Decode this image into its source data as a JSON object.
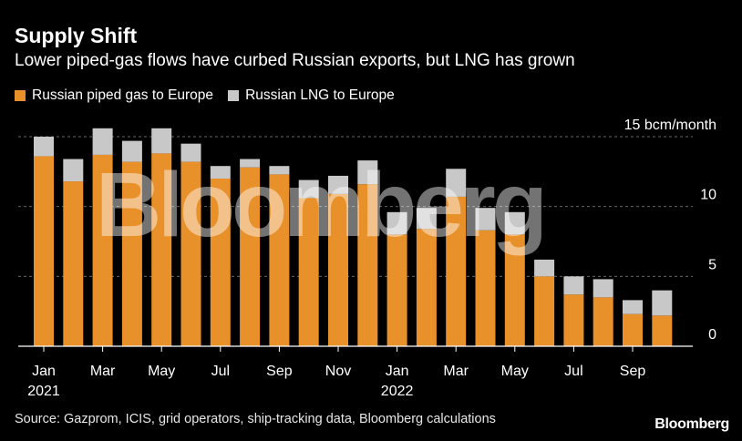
{
  "header": {
    "title": "Supply Shift",
    "subtitle": "Lower piped-gas flows have curbed Russian exports, but LNG has grown"
  },
  "footer": {
    "source": "Source: Gazprom, ICIS, grid operators, ship-tracking data, Bloomberg calculations",
    "brand": "Bloomberg"
  },
  "watermark": "Bloomberg",
  "colors": {
    "piped": "#e8902a",
    "lng": "#c8c8c8",
    "background": "#000000",
    "grid": "#666666"
  },
  "chart_data": {
    "type": "bar",
    "stacked": true,
    "categories": [
      "2021-01",
      "2021-02",
      "2021-03",
      "2021-04",
      "2021-05",
      "2021-06",
      "2021-07",
      "2021-08",
      "2021-09",
      "2021-10",
      "2021-11",
      "2021-12",
      "2022-01",
      "2022-02",
      "2022-03",
      "2022-04",
      "2022-05",
      "2022-06",
      "2022-07",
      "2022-08",
      "2022-09",
      "2022-10"
    ],
    "series": [
      {
        "name": "Russian piped gas to Europe",
        "values": [
          13.6,
          11.8,
          13.7,
          13.2,
          13.8,
          13.2,
          12.0,
          12.8,
          12.3,
          10.6,
          10.9,
          11.6,
          8.0,
          8.4,
          10.7,
          8.3,
          8.0,
          5.0,
          3.7,
          3.5,
          2.3,
          2.2
        ]
      },
      {
        "name": "Russian LNG to Europe",
        "values": [
          1.4,
          1.6,
          1.9,
          1.5,
          1.8,
          1.3,
          0.9,
          0.6,
          0.6,
          1.3,
          1.3,
          1.7,
          1.6,
          1.5,
          2.0,
          1.6,
          1.6,
          1.2,
          1.3,
          1.3,
          1.0,
          1.8
        ]
      }
    ],
    "x_tick_labels": [
      {
        "index": 0,
        "label": "Jan",
        "year": "2021"
      },
      {
        "index": 2,
        "label": "Mar",
        "year": ""
      },
      {
        "index": 4,
        "label": "May",
        "year": ""
      },
      {
        "index": 6,
        "label": "Jul",
        "year": ""
      },
      {
        "index": 8,
        "label": "Sep",
        "year": ""
      },
      {
        "index": 10,
        "label": "Nov",
        "year": ""
      },
      {
        "index": 12,
        "label": "Jan",
        "year": "2022"
      },
      {
        "index": 14,
        "label": "Mar",
        "year": ""
      },
      {
        "index": 16,
        "label": "May",
        "year": ""
      },
      {
        "index": 18,
        "label": "Jul",
        "year": ""
      },
      {
        "index": 20,
        "label": "Sep",
        "year": ""
      }
    ],
    "y_ticks": [
      {
        "value": 0,
        "label": "0"
      },
      {
        "value": 5,
        "label": "5"
      },
      {
        "value": 10,
        "label": "10"
      },
      {
        "value": 15,
        "label": "15 bcm/month"
      }
    ],
    "ylim": [
      0,
      15
    ],
    "grid": true,
    "legend_position": "top-left"
  }
}
